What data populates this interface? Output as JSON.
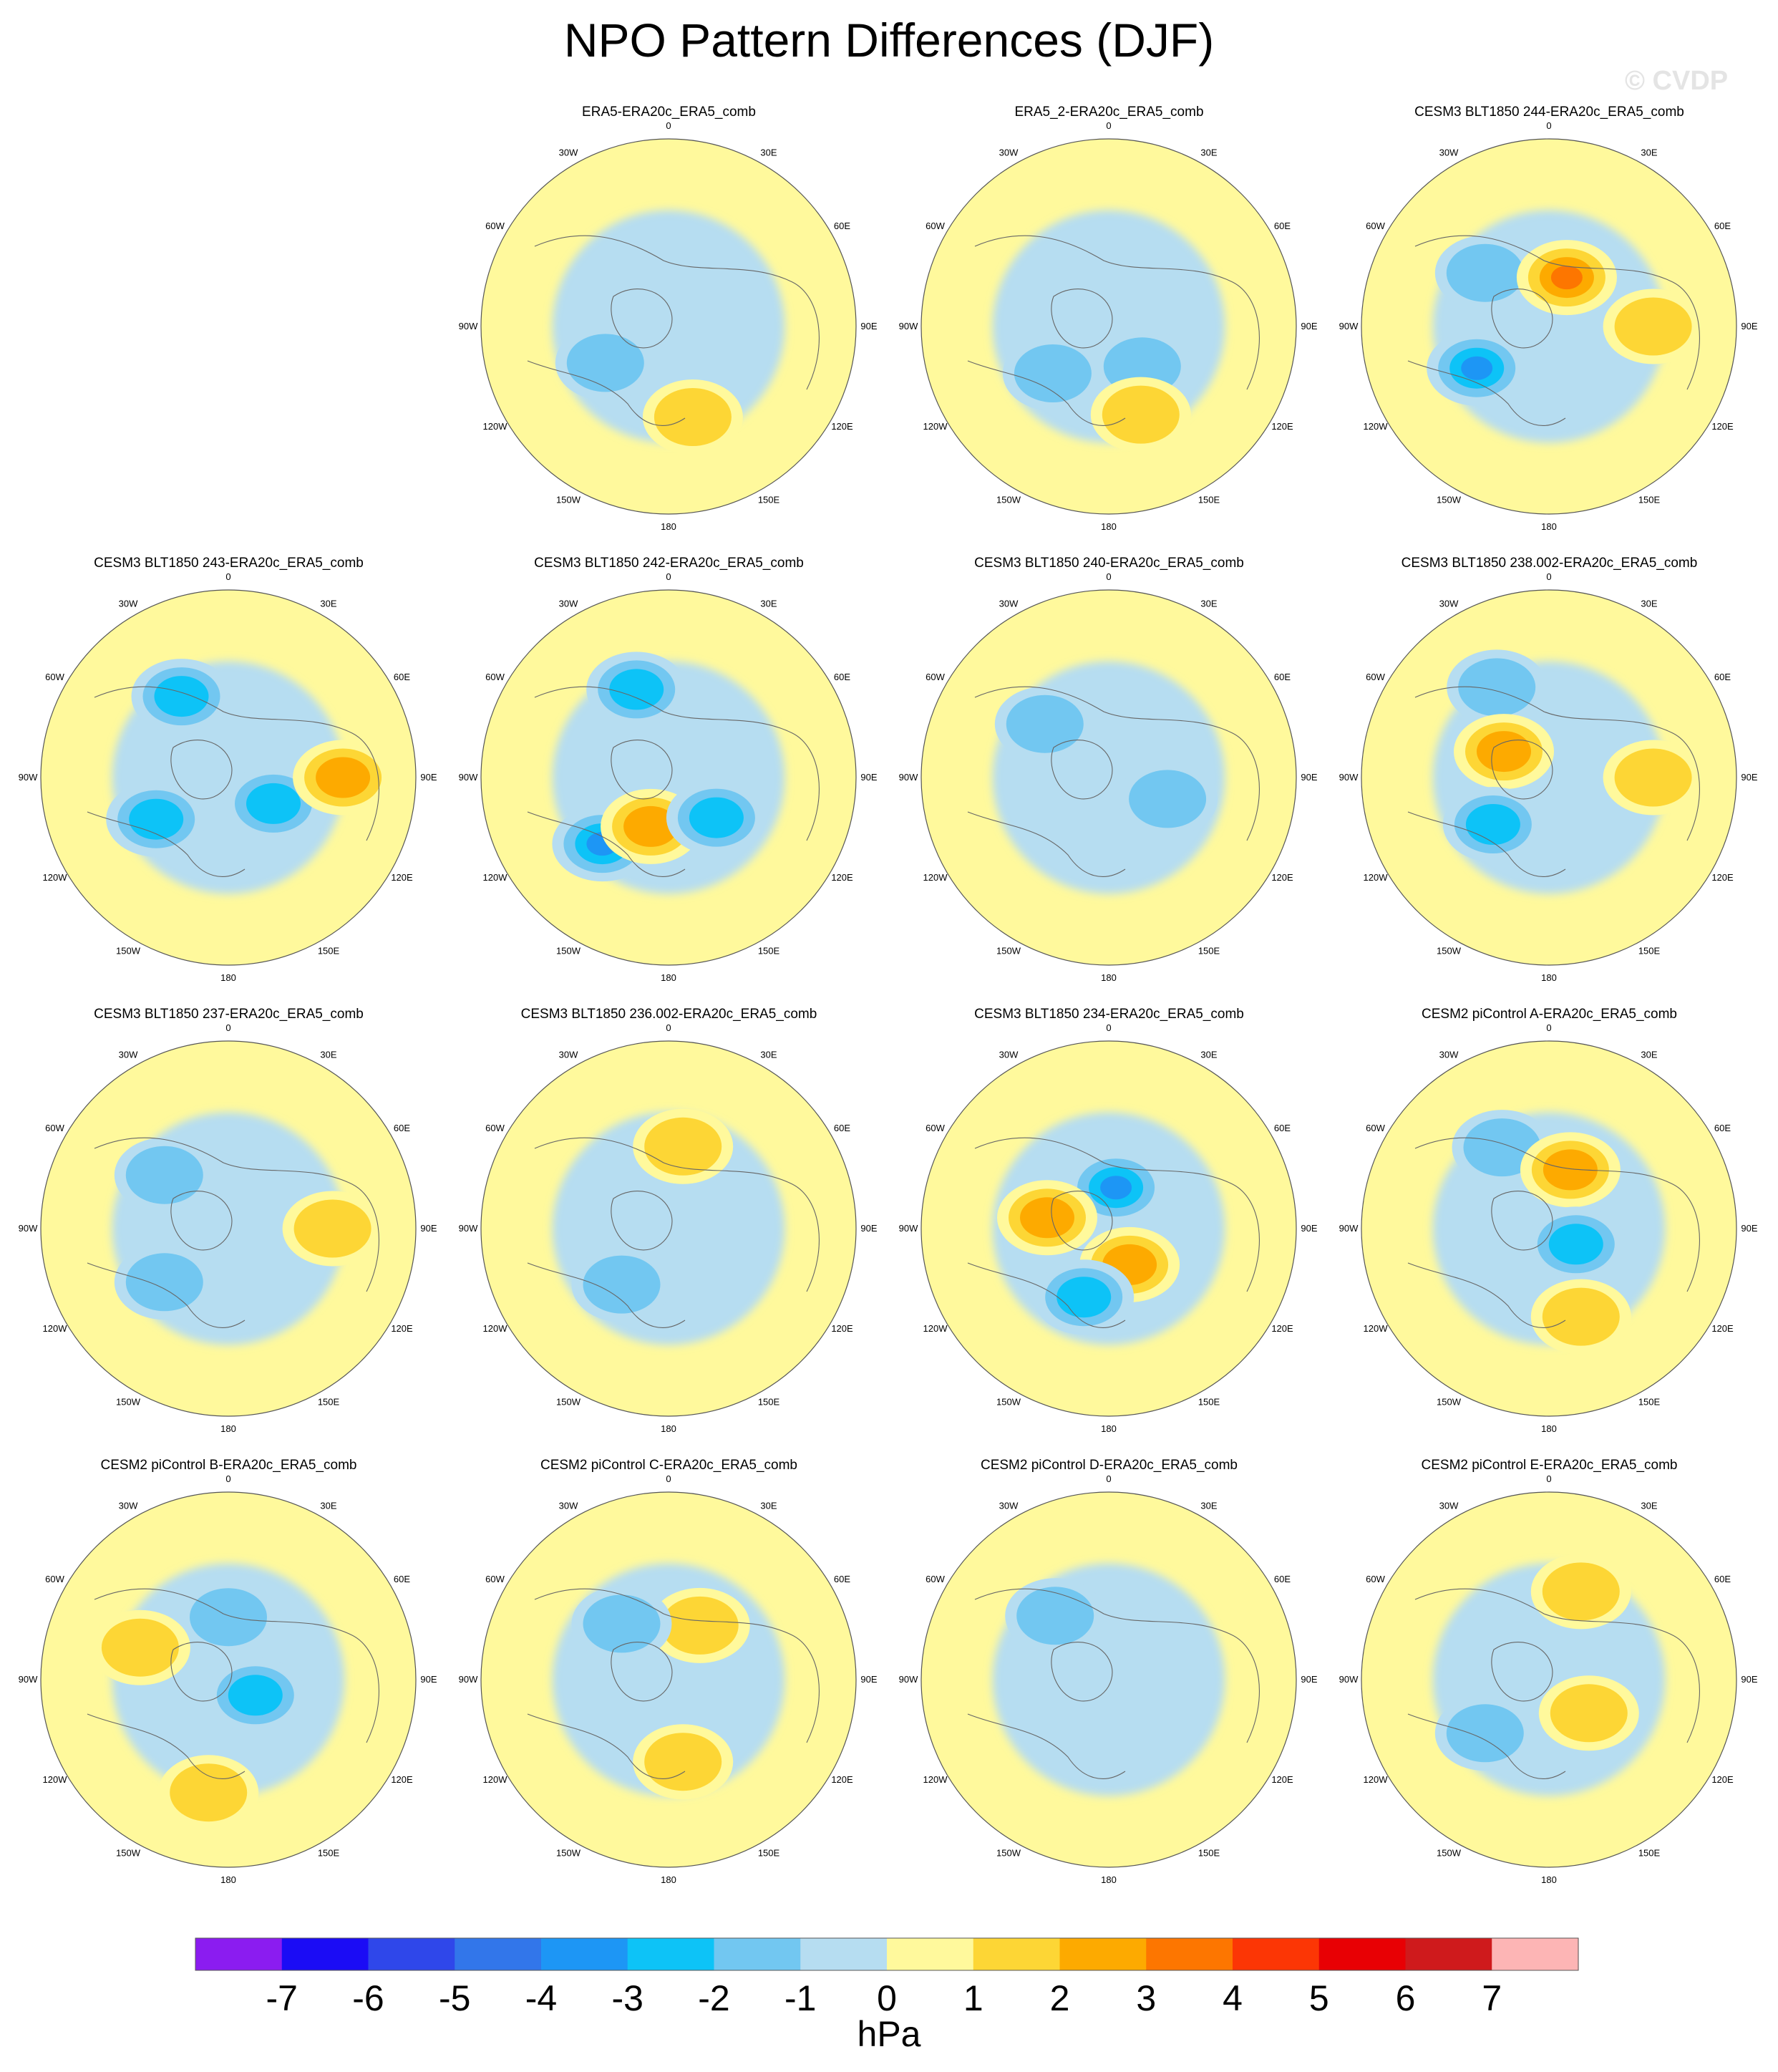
{
  "title": "NPO Pattern Differences (DJF)",
  "watermark": "© CVDP",
  "colorbar": {
    "units": "hPa",
    "ticks": [
      "-7",
      "-6",
      "-5",
      "-4",
      "-3",
      "-2",
      "-1",
      "0",
      "1",
      "2",
      "3",
      "4",
      "5",
      "6",
      "7"
    ],
    "colors": [
      "#8b1cf0",
      "#1b0cf5",
      "#2f47ea",
      "#3276ea",
      "#1d96f5",
      "#0dc3f7",
      "#72c7f1",
      "#b6ddf1",
      "#fff99c",
      "#fdd635",
      "#fdaa00",
      "#fd7600",
      "#fc3605",
      "#e80004",
      "#cf1a1c",
      "#fdb5b5"
    ]
  },
  "lon_labels": {
    "n": "180",
    "nne": "150E",
    "ene": "120E",
    "e": "90E",
    "ese": "60E",
    "sse": "30E",
    "s": "0",
    "ssw": "30W",
    "wsw": "60W",
    "w": "90W",
    "wnw": "120W",
    "nnw": "150W"
  },
  "chart_data": [
    {
      "type": "heatmap",
      "title": "ERA5-ERA20c_ERA5_comb",
      "colorbar_units": "hPa",
      "range": [
        -7,
        7
      ],
      "features": [
        {
          "lon": "60W",
          "lat": 55,
          "value": -2
        },
        {
          "lon": "15E",
          "lat": 45,
          "value": 1.5
        }
      ]
    },
    {
      "type": "heatmap",
      "title": "ERA5_2-ERA20c_ERA5_comb",
      "colorbar_units": "hPa",
      "range": [
        -7,
        7
      ],
      "features": [
        {
          "lon": "50W",
          "lat": 55,
          "value": -2
        },
        {
          "lon": "40E",
          "lat": 65,
          "value": -2
        },
        {
          "lon": "20E",
          "lat": 45,
          "value": 1.5
        }
      ]
    },
    {
      "type": "heatmap",
      "title": "CESM3 BLT1850 244-ERA20c_ERA5_comb",
      "colorbar_units": "hPa",
      "range": [
        -7,
        7
      ],
      "features": [
        {
          "lon": "130W",
          "lat": 50,
          "value": -2
        },
        {
          "lon": "160E",
          "lat": 65,
          "value": 3.5
        },
        {
          "lon": "60W",
          "lat": 50,
          "value": -3.5
        },
        {
          "lon": "90E",
          "lat": 40,
          "value": 1.5
        }
      ]
    },
    {
      "type": "heatmap",
      "title": "CESM3 BLT1850 243-ERA20c_ERA5_comb",
      "colorbar_units": "hPa",
      "range": [
        -7,
        7
      ],
      "features": [
        {
          "lon": "150W",
          "lat": 45,
          "value": -3
        },
        {
          "lon": "60W",
          "lat": 50,
          "value": -3
        },
        {
          "lon": "60E",
          "lat": 65,
          "value": -3
        },
        {
          "lon": "90E",
          "lat": 35,
          "value": 2.5
        }
      ]
    },
    {
      "type": "heatmap",
      "title": "CESM3 BLT1850 242-ERA20c_ERA5_comb",
      "colorbar_units": "hPa",
      "range": [
        -7,
        7
      ],
      "features": [
        {
          "lon": "160W",
          "lat": 45,
          "value": -3
        },
        {
          "lon": "45W",
          "lat": 45,
          "value": -3.5
        },
        {
          "lon": "20W",
          "lat": 65,
          "value": 2.5
        },
        {
          "lon": "50E",
          "lat": 60,
          "value": -3
        }
      ]
    },
    {
      "type": "heatmap",
      "title": "CESM3 BLT1850 240-ERA20c_ERA5_comb",
      "colorbar_units": "hPa",
      "range": [
        -7,
        7
      ],
      "features": [
        {
          "lon": "130W",
          "lat": 50,
          "value": -2
        },
        {
          "lon": "70E",
          "lat": 60,
          "value": -1.5
        }
      ]
    },
    {
      "type": "heatmap",
      "title": "CESM3 BLT1850 238.002-ERA20c_ERA5_comb",
      "colorbar_units": "hPa",
      "range": [
        -7,
        7
      ],
      "features": [
        {
          "lon": "150W",
          "lat": 40,
          "value": -2
        },
        {
          "lon": "120W",
          "lat": 65,
          "value": 2.5
        },
        {
          "lon": "50W",
          "lat": 55,
          "value": -3
        },
        {
          "lon": "90E",
          "lat": 40,
          "value": 2
        }
      ]
    },
    {
      "type": "heatmap",
      "title": "CESM3 BLT1850 237-ERA20c_ERA5_comb",
      "colorbar_units": "hPa",
      "range": [
        -7,
        7
      ],
      "features": [
        {
          "lon": "130W",
          "lat": 50,
          "value": -2
        },
        {
          "lon": "50W",
          "lat": 50,
          "value": -2
        },
        {
          "lon": "90E",
          "lat": 40,
          "value": 1.5
        }
      ]
    },
    {
      "type": "heatmap",
      "title": "CESM3 BLT1850 236.002-ERA20c_ERA5_comb",
      "colorbar_units": "hPa",
      "range": [
        -7,
        7
      ],
      "features": [
        {
          "lon": "170E",
          "lat": 50,
          "value": 1.5
        },
        {
          "lon": "40W",
          "lat": 55,
          "value": -2
        }
      ]
    },
    {
      "type": "heatmap",
      "title": "CESM3 BLT1850 234-ERA20c_ERA5_comb",
      "colorbar_units": "hPa",
      "range": [
        -7,
        7
      ],
      "features": [
        {
          "lon": "170E",
          "lat": 70,
          "value": -3.5
        },
        {
          "lon": "100W",
          "lat": 60,
          "value": 2.5
        },
        {
          "lon": "30E",
          "lat": 70,
          "value": 2.5
        },
        {
          "lon": "20W",
          "lat": 55,
          "value": -3
        }
      ]
    },
    {
      "type": "heatmap",
      "title": "CESM2 piControl A-ERA20c_ERA5_comb",
      "colorbar_units": "hPa",
      "range": [
        -7,
        7
      ],
      "features": [
        {
          "lon": "150W",
          "lat": 45,
          "value": -2
        },
        {
          "lon": "160E",
          "lat": 60,
          "value": 2.5
        },
        {
          "lon": "60E",
          "lat": 75,
          "value": -3
        },
        {
          "lon": "20E",
          "lat": 45,
          "value": 1.5
        }
      ]
    },
    {
      "type": "heatmap",
      "title": "CESM2 piControl B-ERA20c_ERA5_comb",
      "colorbar_units": "hPa",
      "range": [
        -7,
        7
      ],
      "features": [
        {
          "lon": "180",
          "lat": 60,
          "value": -2
        },
        {
          "lon": "110W",
          "lat": 45,
          "value": 1.5
        },
        {
          "lon": "60E",
          "lat": 75,
          "value": -3
        },
        {
          "lon": "10W",
          "lat": 35,
          "value": 1.5
        }
      ]
    },
    {
      "type": "heatmap",
      "title": "CESM2 piControl C-ERA20c_ERA5_comb",
      "colorbar_units": "hPa",
      "range": [
        -7,
        7
      ],
      "features": [
        {
          "lon": "150E",
          "lat": 60,
          "value": 2
        },
        {
          "lon": "140W",
          "lat": 55,
          "value": -2
        },
        {
          "lon": "10E",
          "lat": 50,
          "value": 1.5
        }
      ]
    },
    {
      "type": "heatmap",
      "title": "CESM2 piControl D-ERA20c_ERA5_comb",
      "colorbar_units": "hPa",
      "range": [
        -7,
        7
      ],
      "features": [
        {
          "lon": "140W",
          "lat": 50,
          "value": -2
        }
      ]
    },
    {
      "type": "heatmap",
      "title": "CESM2 piControl E-ERA20c_ERA5_comb",
      "colorbar_units": "hPa",
      "range": [
        -7,
        7
      ],
      "features": [
        {
          "lon": "160E",
          "lat": 45,
          "value": 1.5
        },
        {
          "lon": "50E",
          "lat": 65,
          "value": 1.5
        },
        {
          "lon": "50W",
          "lat": 50,
          "value": -2
        }
      ]
    }
  ]
}
